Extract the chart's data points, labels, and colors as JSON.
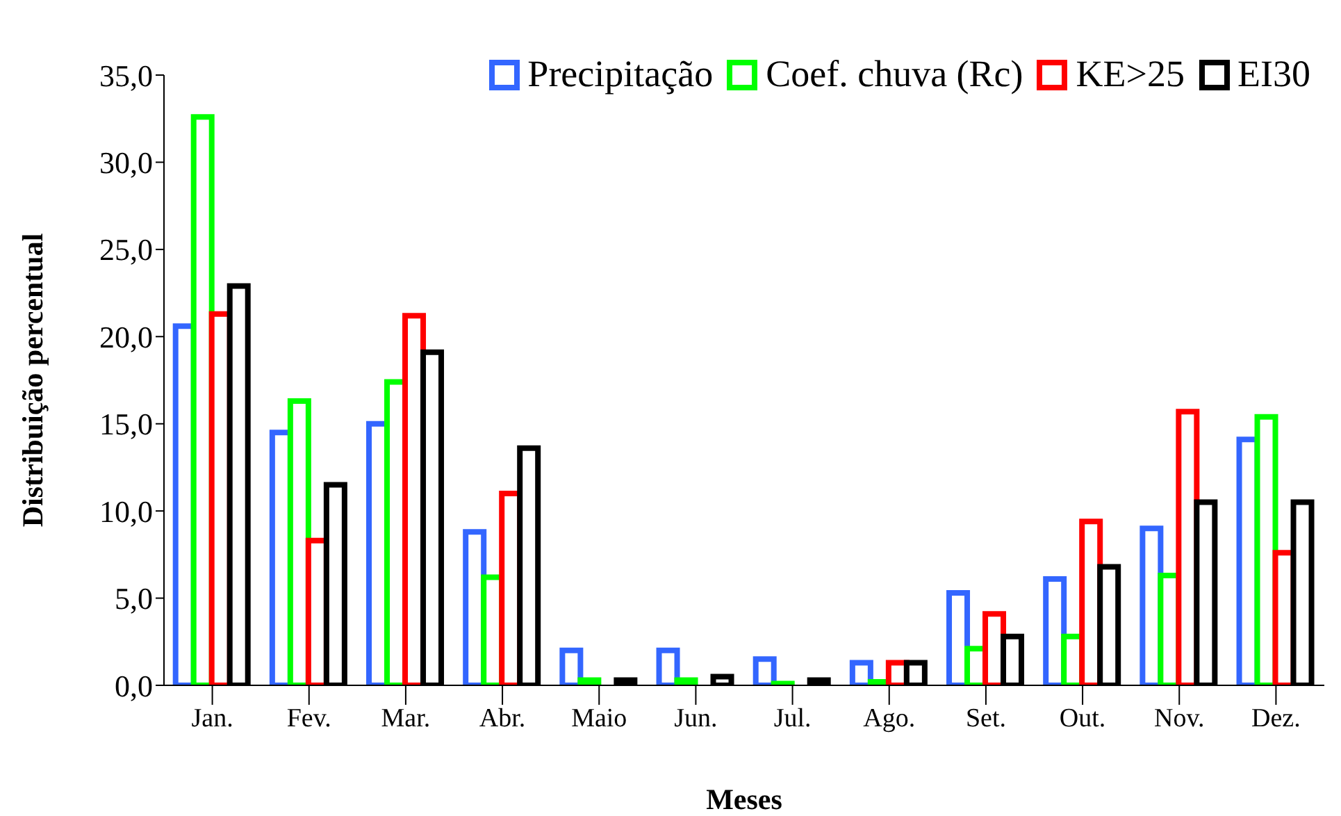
{
  "chart_data": {
    "type": "bar",
    "xlabel": "Meses",
    "ylabel": "Distribuição percentual",
    "categories": [
      "Jan.",
      "Fev.",
      "Mar.",
      "Abr.",
      "Maio",
      "Jun.",
      "Jul.",
      "Ago.",
      "Set.",
      "Out.",
      "Nov.",
      "Dez."
    ],
    "series": [
      {
        "name": "Precipitação",
        "color": "#3366ff",
        "values": [
          20.6,
          14.5,
          15.0,
          8.8,
          2.0,
          2.0,
          1.5,
          1.3,
          5.3,
          6.1,
          9.0,
          14.1
        ]
      },
      {
        "name": "Coef. chuva (Rc)",
        "color": "#00ff00",
        "values": [
          32.6,
          16.3,
          17.4,
          6.2,
          0.3,
          0.3,
          0.1,
          0.2,
          2.1,
          2.8,
          6.3,
          15.4
        ]
      },
      {
        "name": "KE>25",
        "color": "#ff0000",
        "values": [
          21.3,
          8.3,
          21.2,
          11.0,
          0,
          0,
          0,
          1.3,
          4.1,
          9.4,
          15.7,
          7.6
        ]
      },
      {
        "name": "EI30",
        "color": "#000000",
        "values": [
          22.9,
          11.5,
          19.1,
          13.6,
          0.3,
          0.5,
          0.3,
          1.3,
          2.8,
          6.8,
          10.5,
          10.5
        ]
      }
    ],
    "ylim": [
      0,
      35
    ],
    "yticks": [
      {
        "value": 0,
        "label": "0,0"
      },
      {
        "value": 5,
        "label": "5,0"
      },
      {
        "value": 10,
        "label": "10,0"
      },
      {
        "value": 15,
        "label": "15,0"
      },
      {
        "value": 20,
        "label": "20,0"
      },
      {
        "value": 25,
        "label": "25,0"
      },
      {
        "value": 30,
        "label": "30,0"
      },
      {
        "value": 35,
        "label": "35,0"
      }
    ],
    "legend": "top right"
  }
}
